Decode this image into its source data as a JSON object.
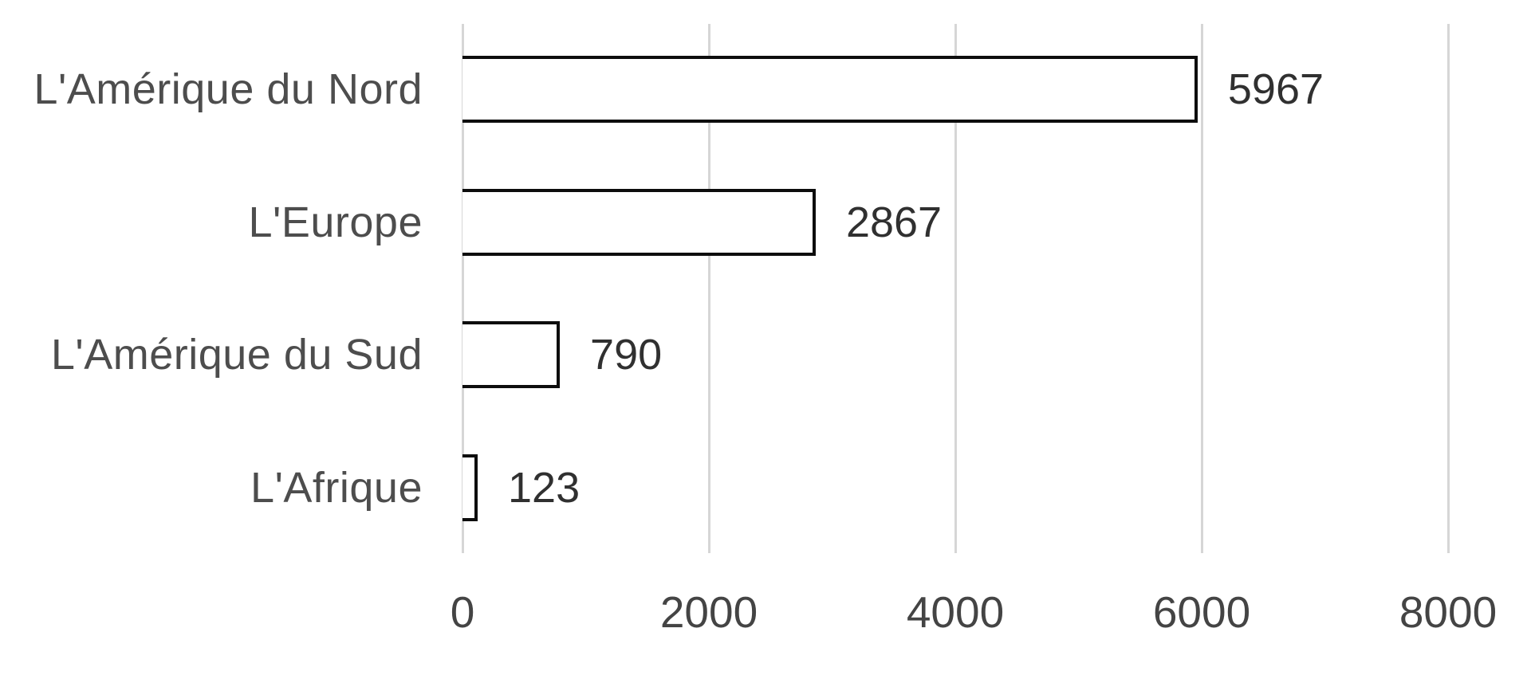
{
  "chart_data": {
    "type": "bar",
    "orientation": "horizontal",
    "title": "",
    "xlabel": "",
    "ylabel": "",
    "categories": [
      "L'Amérique du Nord",
      "L'Europe",
      "L'Amérique du Sud",
      "L'Afrique"
    ],
    "values": [
      5967,
      2867,
      790,
      123
    ],
    "value_labels": [
      "5967",
      "2867",
      "790",
      "123"
    ],
    "xlim": [
      0,
      8000
    ],
    "x_ticks": [
      0,
      2000,
      4000,
      6000,
      8000
    ],
    "x_tick_labels": [
      "0",
      "2000",
      "4000",
      "6000",
      "8000"
    ],
    "grid": "vertical-gridlines-on",
    "legend": "none",
    "colors": {
      "background": "#ffffff",
      "bar_fill": "#ffffff",
      "bar_border": "#0d0d0d",
      "gridline": "#d6d6d6",
      "category_label": "#4d4d4d",
      "value_label": "#303030",
      "tick_label": "#444444"
    }
  }
}
